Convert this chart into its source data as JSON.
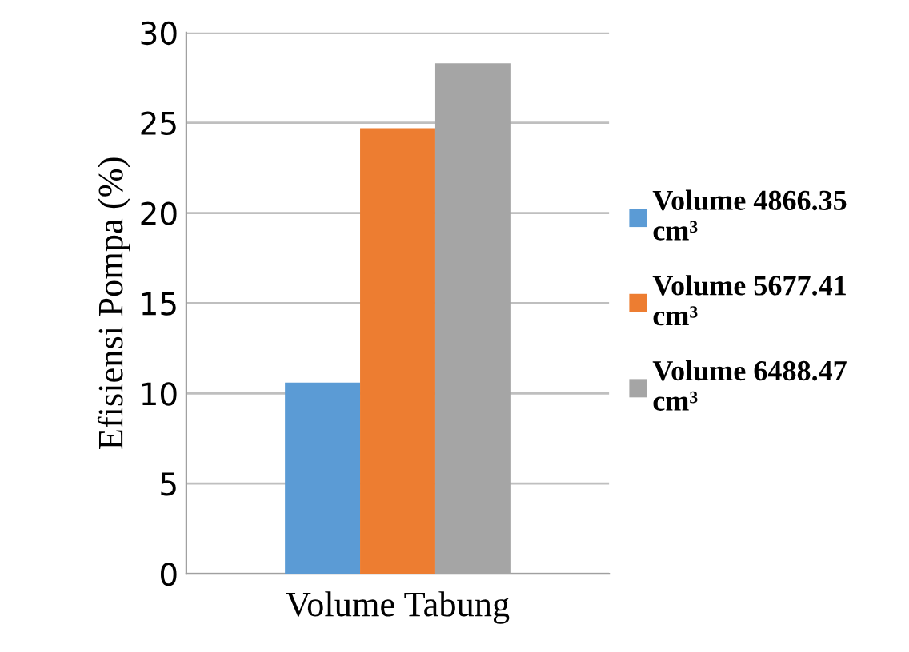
{
  "chart_data": {
    "type": "bar",
    "ylabel": "Efisiensi Pompa (%)",
    "categories": [
      "Volume Tabung"
    ],
    "series": [
      {
        "name": "Volume 4866.35 cm³",
        "color": "#5b9bd5",
        "values": [
          10.6
        ]
      },
      {
        "name": "Volume 5677.41 cm³",
        "color": "#ed7d31",
        "values": [
          24.7
        ]
      },
      {
        "name": "Volume 6488.47 cm³",
        "color": "#a5a5a5",
        "values": [
          28.3
        ]
      }
    ],
    "ylim": [
      0,
      30
    ],
    "yticks": [
      0,
      5,
      10,
      15,
      20,
      25,
      30
    ],
    "grid": "y",
    "legend": "right"
  }
}
